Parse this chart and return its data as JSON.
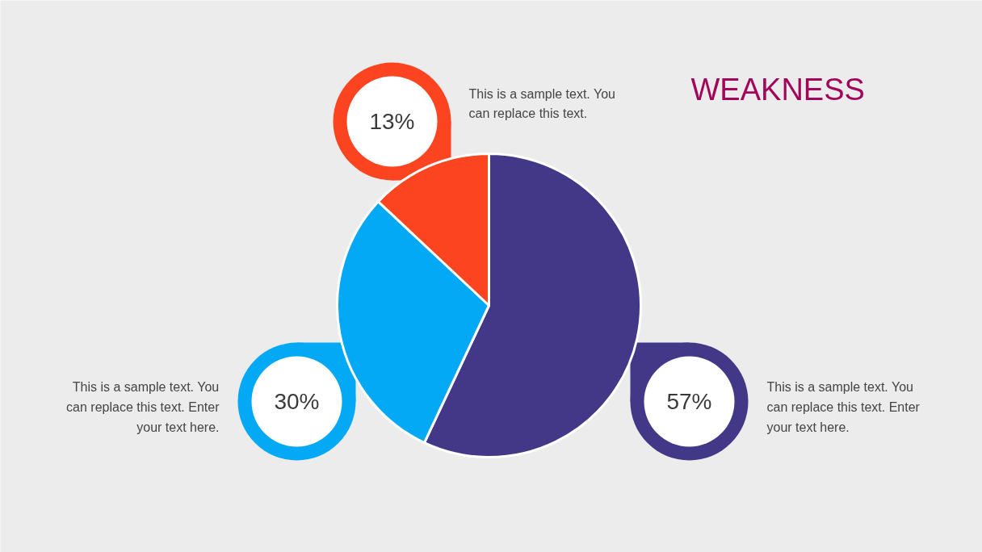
{
  "chart_data": {
    "type": "pie",
    "title": "WEAKNESS",
    "categories": [
      null,
      null,
      null
    ],
    "values": [
      57,
      30,
      13
    ],
    "colors": [
      "#433888",
      "#03a9f4",
      "#fc4420"
    ],
    "value_labels": [
      "57%",
      "30%",
      "13%"
    ],
    "annotations": [
      "This is a sample text. You can replace this text. Enter your text here.",
      "This is a sample text. You can replace this text. Enter your text here.",
      "This is a sample text. You can replace this text."
    ]
  }
}
